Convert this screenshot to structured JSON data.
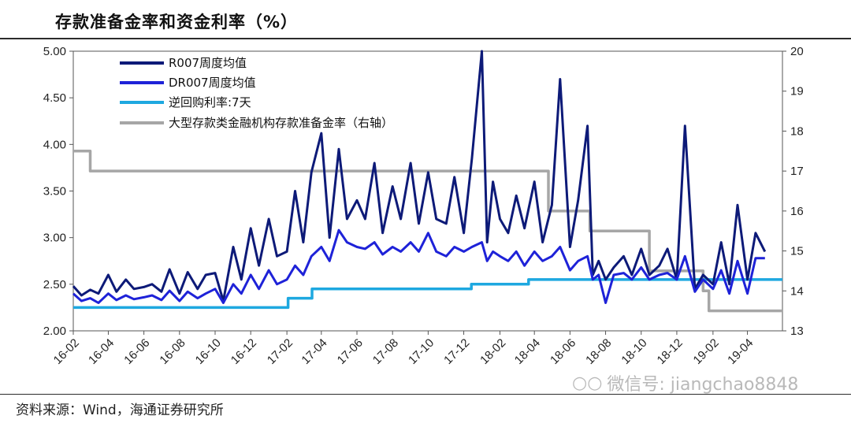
{
  "title": "存款准备金率和资金利率（%）",
  "source": "资料来源：Wind，海通证券研究所",
  "watermark": "微信号: jiangchao8848",
  "chart_data": {
    "type": "line",
    "x_tick_labels": [
      "16-02",
      "16-04",
      "16-06",
      "16-08",
      "16-10",
      "16-12",
      "17-02",
      "17-04",
      "17-06",
      "17-08",
      "17-10",
      "17-12",
      "18-02",
      "18-04",
      "18-06",
      "18-08",
      "18-10",
      "18-12",
      "19-02",
      "19-04"
    ],
    "y_left": {
      "ticks": [
        "2.00",
        "2.50",
        "3.00",
        "3.50",
        "4.00",
        "4.50",
        "5.00"
      ],
      "ylim": [
        2.0,
        5.0
      ]
    },
    "y_right": {
      "ticks": [
        "13",
        "14",
        "15",
        "16",
        "17",
        "18",
        "19",
        "20"
      ],
      "ylim": [
        13,
        20
      ]
    },
    "x_range": [
      "2016-02-01",
      "2019-05-31"
    ],
    "legend": [
      {
        "name": "R007周度均值",
        "color": "#0d1a78"
      },
      {
        "name": "DR007周度均值",
        "color": "#1e22d8"
      },
      {
        "name": "逆回购利率:7天",
        "color": "#1ea8e0"
      },
      {
        "name": "大型存款类金融机构存款准备金率（右轴）",
        "color": "#a6a6a6"
      }
    ],
    "series": [
      {
        "name": "R007周度均值",
        "color": "#0d1a78",
        "axis": "left",
        "points": [
          [
            "2016-02-01",
            2.48
          ],
          [
            "2016-02-15",
            2.38
          ],
          [
            "2016-03-01",
            2.44
          ],
          [
            "2016-03-15",
            2.4
          ],
          [
            "2016-04-01",
            2.6
          ],
          [
            "2016-04-15",
            2.42
          ],
          [
            "2016-05-01",
            2.55
          ],
          [
            "2016-05-15",
            2.45
          ],
          [
            "2016-06-01",
            2.47
          ],
          [
            "2016-06-15",
            2.5
          ],
          [
            "2016-07-01",
            2.42
          ],
          [
            "2016-07-15",
            2.66
          ],
          [
            "2016-08-01",
            2.4
          ],
          [
            "2016-08-15",
            2.63
          ],
          [
            "2016-09-01",
            2.45
          ],
          [
            "2016-09-15",
            2.6
          ],
          [
            "2016-10-01",
            2.62
          ],
          [
            "2016-10-15",
            2.32
          ],
          [
            "2016-11-01",
            2.9
          ],
          [
            "2016-11-15",
            2.55
          ],
          [
            "2016-12-01",
            3.1
          ],
          [
            "2016-12-15",
            2.7
          ],
          [
            "2017-01-01",
            3.2
          ],
          [
            "2017-01-15",
            2.8
          ],
          [
            "2017-02-01",
            2.85
          ],
          [
            "2017-02-15",
            3.5
          ],
          [
            "2017-03-01",
            2.95
          ],
          [
            "2017-03-15",
            3.7
          ],
          [
            "2017-04-01",
            4.12
          ],
          [
            "2017-04-15",
            3.0
          ],
          [
            "2017-05-01",
            3.95
          ],
          [
            "2017-05-15",
            3.2
          ],
          [
            "2017-06-01",
            3.4
          ],
          [
            "2017-06-15",
            3.2
          ],
          [
            "2017-07-01",
            3.8
          ],
          [
            "2017-07-15",
            3.05
          ],
          [
            "2017-08-01",
            3.55
          ],
          [
            "2017-08-15",
            3.2
          ],
          [
            "2017-09-01",
            3.8
          ],
          [
            "2017-09-15",
            3.15
          ],
          [
            "2017-10-01",
            3.7
          ],
          [
            "2017-10-15",
            3.2
          ],
          [
            "2017-11-01",
            3.15
          ],
          [
            "2017-11-15",
            3.65
          ],
          [
            "2017-12-01",
            3.05
          ],
          [
            "2017-12-15",
            3.85
          ],
          [
            "2018-01-01",
            5.0
          ],
          [
            "2018-01-10",
            2.95
          ],
          [
            "2018-01-20",
            3.6
          ],
          [
            "2018-02-01",
            3.2
          ],
          [
            "2018-02-15",
            3.05
          ],
          [
            "2018-03-01",
            3.45
          ],
          [
            "2018-03-15",
            3.1
          ],
          [
            "2018-04-01",
            3.6
          ],
          [
            "2018-04-15",
            2.95
          ],
          [
            "2018-05-01",
            3.35
          ],
          [
            "2018-05-15",
            4.7
          ],
          [
            "2018-06-01",
            2.9
          ],
          [
            "2018-06-15",
            3.4
          ],
          [
            "2018-07-01",
            4.2
          ],
          [
            "2018-07-10",
            2.6
          ],
          [
            "2018-07-20",
            2.75
          ],
          [
            "2018-08-01",
            2.55
          ],
          [
            "2018-08-15",
            2.68
          ],
          [
            "2018-09-01",
            2.8
          ],
          [
            "2018-09-15",
            2.6
          ],
          [
            "2018-10-01",
            2.88
          ],
          [
            "2018-10-15",
            2.6
          ],
          [
            "2018-11-01",
            2.7
          ],
          [
            "2018-11-15",
            2.88
          ],
          [
            "2018-12-01",
            2.55
          ],
          [
            "2018-12-15",
            4.2
          ],
          [
            "2019-01-01",
            2.45
          ],
          [
            "2019-01-15",
            2.6
          ],
          [
            "2019-02-01",
            2.5
          ],
          [
            "2019-02-15",
            2.95
          ],
          [
            "2019-03-01",
            2.5
          ],
          [
            "2019-03-15",
            3.35
          ],
          [
            "2019-04-01",
            2.55
          ],
          [
            "2019-04-15",
            3.05
          ],
          [
            "2019-05-01",
            2.85
          ]
        ]
      },
      {
        "name": "DR007周度均值",
        "color": "#1e22d8",
        "axis": "left",
        "points": [
          [
            "2016-02-01",
            2.4
          ],
          [
            "2016-02-15",
            2.32
          ],
          [
            "2016-03-01",
            2.35
          ],
          [
            "2016-03-15",
            2.3
          ],
          [
            "2016-04-01",
            2.4
          ],
          [
            "2016-04-15",
            2.33
          ],
          [
            "2016-05-01",
            2.38
          ],
          [
            "2016-05-15",
            2.34
          ],
          [
            "2016-06-01",
            2.36
          ],
          [
            "2016-06-15",
            2.38
          ],
          [
            "2016-07-01",
            2.33
          ],
          [
            "2016-07-15",
            2.43
          ],
          [
            "2016-08-01",
            2.32
          ],
          [
            "2016-08-15",
            2.42
          ],
          [
            "2016-09-01",
            2.35
          ],
          [
            "2016-09-15",
            2.4
          ],
          [
            "2016-10-01",
            2.45
          ],
          [
            "2016-10-15",
            2.3
          ],
          [
            "2016-11-01",
            2.5
          ],
          [
            "2016-11-15",
            2.4
          ],
          [
            "2016-12-01",
            2.6
          ],
          [
            "2016-12-15",
            2.45
          ],
          [
            "2017-01-01",
            2.65
          ],
          [
            "2017-01-15",
            2.5
          ],
          [
            "2017-02-01",
            2.55
          ],
          [
            "2017-02-15",
            2.7
          ],
          [
            "2017-03-01",
            2.6
          ],
          [
            "2017-03-15",
            2.8
          ],
          [
            "2017-04-01",
            2.9
          ],
          [
            "2017-04-15",
            2.75
          ],
          [
            "2017-05-01",
            3.08
          ],
          [
            "2017-05-15",
            2.95
          ],
          [
            "2017-06-01",
            2.9
          ],
          [
            "2017-06-15",
            2.88
          ],
          [
            "2017-07-01",
            2.95
          ],
          [
            "2017-07-15",
            2.82
          ],
          [
            "2017-08-01",
            2.9
          ],
          [
            "2017-08-15",
            2.85
          ],
          [
            "2017-09-01",
            2.95
          ],
          [
            "2017-09-15",
            2.85
          ],
          [
            "2017-10-01",
            3.05
          ],
          [
            "2017-10-15",
            2.85
          ],
          [
            "2017-11-01",
            2.8
          ],
          [
            "2017-11-15",
            2.9
          ],
          [
            "2017-12-01",
            2.85
          ],
          [
            "2017-12-15",
            2.9
          ],
          [
            "2018-01-01",
            2.95
          ],
          [
            "2018-01-10",
            2.75
          ],
          [
            "2018-01-20",
            2.85
          ],
          [
            "2018-02-01",
            2.8
          ],
          [
            "2018-02-15",
            2.75
          ],
          [
            "2018-03-01",
            2.85
          ],
          [
            "2018-03-15",
            2.7
          ],
          [
            "2018-04-01",
            2.85
          ],
          [
            "2018-04-15",
            2.75
          ],
          [
            "2018-05-01",
            2.8
          ],
          [
            "2018-05-15",
            2.9
          ],
          [
            "2018-06-01",
            2.65
          ],
          [
            "2018-06-15",
            2.75
          ],
          [
            "2018-07-01",
            2.8
          ],
          [
            "2018-07-10",
            2.55
          ],
          [
            "2018-07-20",
            2.6
          ],
          [
            "2018-08-01",
            2.3
          ],
          [
            "2018-08-15",
            2.6
          ],
          [
            "2018-09-01",
            2.62
          ],
          [
            "2018-09-15",
            2.55
          ],
          [
            "2018-10-01",
            2.68
          ],
          [
            "2018-10-15",
            2.55
          ],
          [
            "2018-11-01",
            2.6
          ],
          [
            "2018-11-15",
            2.62
          ],
          [
            "2018-12-01",
            2.55
          ],
          [
            "2018-12-15",
            2.8
          ],
          [
            "2019-01-01",
            2.42
          ],
          [
            "2019-01-15",
            2.55
          ],
          [
            "2019-02-01",
            2.45
          ],
          [
            "2019-02-15",
            2.65
          ],
          [
            "2019-03-01",
            2.4
          ],
          [
            "2019-03-15",
            2.75
          ],
          [
            "2019-04-01",
            2.4
          ],
          [
            "2019-04-15",
            2.78
          ],
          [
            "2019-05-01",
            2.78
          ]
        ]
      },
      {
        "name": "逆回购利率:7天",
        "color": "#1ea8e0",
        "axis": "left",
        "step": true,
        "points": [
          [
            "2016-02-01",
            2.25
          ],
          [
            "2017-02-03",
            2.35
          ],
          [
            "2017-03-16",
            2.45
          ],
          [
            "2017-12-14",
            2.5
          ],
          [
            "2018-03-22",
            2.55
          ],
          [
            "2019-05-31",
            2.55
          ]
        ]
      },
      {
        "name": "大型存款类金融机构存款准备金率（右轴）",
        "color": "#a6a6a6",
        "axis": "right",
        "step": true,
        "points": [
          [
            "2016-02-01",
            17.5
          ],
          [
            "2016-03-01",
            17.0
          ],
          [
            "2018-04-25",
            16.0
          ],
          [
            "2018-07-05",
            15.5
          ],
          [
            "2018-10-15",
            14.5
          ],
          [
            "2019-01-15",
            14.0
          ],
          [
            "2019-01-25",
            13.5
          ],
          [
            "2019-05-31",
            13.5
          ]
        ]
      }
    ]
  }
}
